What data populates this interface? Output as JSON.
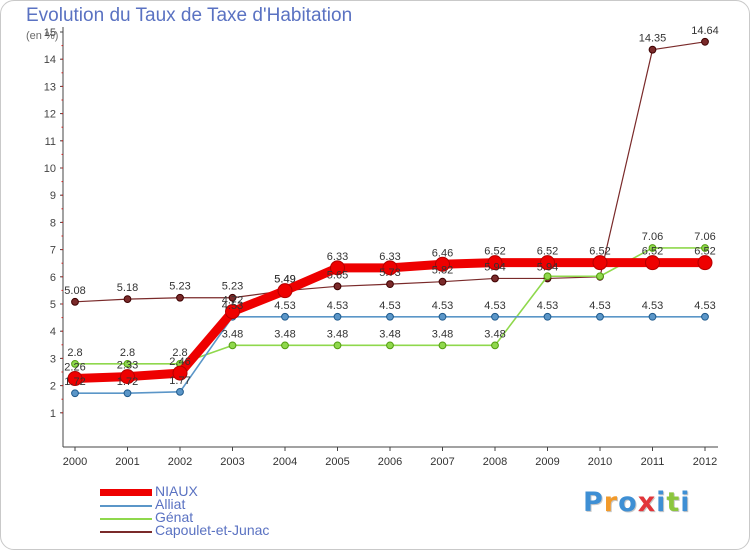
{
  "chart_data": {
    "type": "line",
    "title": "Evolution du Taux de Taxe d'Habitation",
    "subtitle": "(en %)",
    "xlabel": "",
    "ylabel": "",
    "ylim": [
      1,
      15
    ],
    "yticks": [
      "1",
      "2",
      "3",
      "4",
      "5",
      "6",
      "7",
      "8",
      "9",
      "10",
      "11",
      "12",
      "13",
      "14",
      "15"
    ],
    "categories": [
      "2000",
      "2001",
      "2002",
      "2003",
      "2004",
      "2005",
      "2006",
      "2007",
      "2008",
      "2009",
      "2010",
      "2011",
      "2012"
    ],
    "grid": false,
    "legend_position": "bottom-left",
    "series": [
      {
        "name": "NIAUX",
        "color": "#ee0000",
        "values": [
          2.26,
          2.33,
          2.46,
          4.72,
          5.49,
          6.33,
          6.33,
          6.46,
          6.52,
          6.52,
          6.52,
          6.52,
          6.52
        ],
        "labels": [
          "2.26",
          "2.33",
          "2.46",
          "4.72",
          "5.49",
          "6.33",
          "6.33",
          "6.46",
          "6.52",
          "6.52",
          "6.52",
          "6.52",
          "6.52"
        ]
      },
      {
        "name": "Alliat",
        "color": "#5b96c8",
        "values": [
          1.72,
          1.72,
          1.77,
          4.53,
          4.53,
          4.53,
          4.53,
          4.53,
          4.53,
          4.53,
          4.53,
          4.53,
          4.53
        ],
        "labels": [
          "1.72",
          "1.72",
          "1.77",
          "4.53",
          "4.53",
          "4.53",
          "4.53",
          "4.53",
          "4.53",
          "4.53",
          "4.53",
          "4.53",
          "4.53"
        ]
      },
      {
        "name": "Génat",
        "color": "#8fd84c",
        "values": [
          2.8,
          2.8,
          2.8,
          3.48,
          3.48,
          3.48,
          3.48,
          3.48,
          3.48,
          6.02,
          6.02,
          7.06,
          7.06
        ],
        "labels": [
          "2.8",
          "2.8",
          "2.8",
          "3.48",
          "3.48",
          "3.48",
          "3.48",
          "3.48",
          "3.48",
          "",
          "",
          "7.06",
          "7.06"
        ]
      },
      {
        "name": "Capoulet-et-Junac",
        "color": "#7a2a2a",
        "values": [
          5.08,
          5.18,
          5.23,
          5.23,
          5.49,
          5.65,
          5.73,
          5.82,
          5.94,
          5.94,
          6.0,
          14.35,
          14.64
        ],
        "labels": [
          "5.08",
          "5.18",
          "5.23",
          "5.23",
          "5.49",
          "5.65",
          "5.73",
          "5.82",
          "5.94",
          "5.94",
          "",
          "14.35",
          "14.64"
        ]
      }
    ]
  },
  "brand": {
    "text": "Proxiti",
    "colors": [
      "#3e8fd4",
      "#f29a2a",
      "#3e8fd4",
      "#e2353a",
      "#3e8fd4",
      "#8cc63e",
      "#3e8fd4"
    ]
  }
}
